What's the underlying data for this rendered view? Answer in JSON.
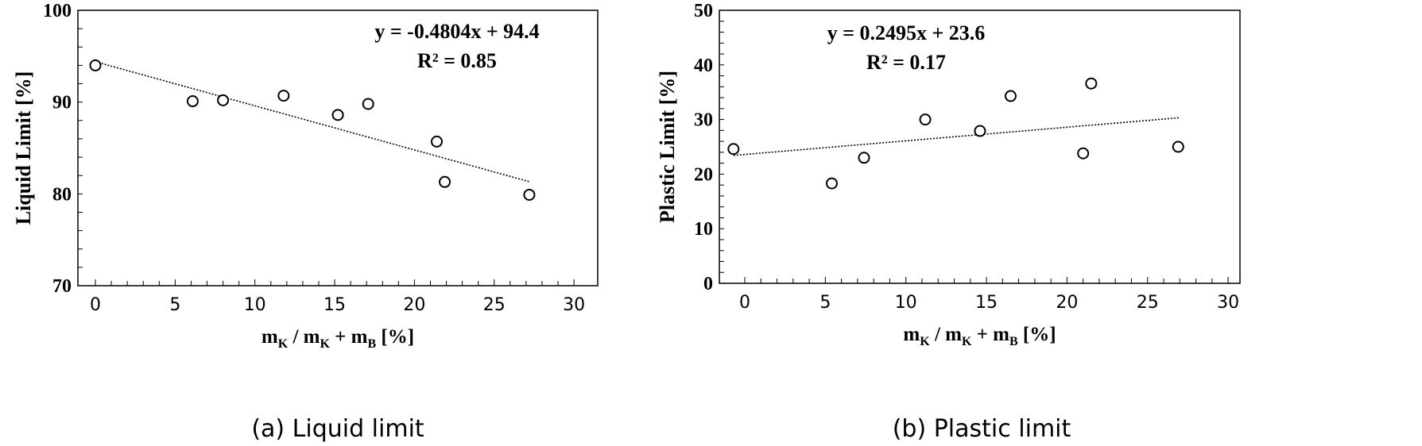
{
  "chart_data": [
    {
      "type": "scatter",
      "caption": "(a) Liquid limit",
      "xlabel": {
        "main": "m",
        "sub1": "K",
        "mid": " / m",
        "sub2": "K",
        "plus": " + m",
        "sub3": "B",
        "unit": " [%]"
      },
      "ylabel": "Liquid Limit [%]",
      "xlim": [
        -1,
        31
      ],
      "ylim": [
        70,
        100
      ],
      "xticks": [
        "0",
        "5",
        "10",
        "15",
        "20",
        "25",
        "30"
      ],
      "yticks": [
        "70",
        "80",
        "90",
        "100"
      ],
      "points": [
        [
          0,
          94.0
        ],
        [
          6.1,
          90.1
        ],
        [
          8.0,
          90.2
        ],
        [
          11.8,
          90.7
        ],
        [
          15.2,
          88.6
        ],
        [
          17.1,
          89.8
        ],
        [
          21.4,
          85.7
        ],
        [
          21.9,
          81.3
        ],
        [
          27.2,
          79.9
        ]
      ],
      "trendline": {
        "slope": -0.4804,
        "intercept": 94.4,
        "x_range": [
          0,
          27.2
        ],
        "style": "dotted"
      },
      "equation": "y = -0.4804x + 94.4",
      "r2": "R² = 0.85",
      "grid": false,
      "marker": "open-circle"
    },
    {
      "type": "scatter",
      "caption": "(b) Plastic limit",
      "xlabel": {
        "main": "m",
        "sub1": "K",
        "mid": " / m",
        "sub2": "K",
        "plus": " + m",
        "sub3": "B",
        "unit": " [%]"
      },
      "ylabel": "Plastic Limit [%]",
      "xlim": [
        -1.5,
        31
      ],
      "ylim": [
        0,
        50
      ],
      "xticks": [
        "0",
        "5",
        "10",
        "15",
        "20",
        "25",
        "30"
      ],
      "yticks": [
        "0",
        "10",
        "20",
        "30",
        "40",
        "50"
      ],
      "points": [
        [
          -0.7,
          24.6
        ],
        [
          5.4,
          18.3
        ],
        [
          7.4,
          23.0
        ],
        [
          11.2,
          30.0
        ],
        [
          14.6,
          27.9
        ],
        [
          16.5,
          34.3
        ],
        [
          21.0,
          23.8
        ],
        [
          21.5,
          36.6
        ],
        [
          26.9,
          25.0
        ]
      ],
      "trendline": {
        "slope": 0.2495,
        "intercept": 23.6,
        "x_range": [
          -0.7,
          27
        ],
        "style": "dotted"
      },
      "equation": "y = 0.2495x + 23.6",
      "r2": "R² = 0.17",
      "grid": false,
      "marker": "open-circle"
    }
  ]
}
